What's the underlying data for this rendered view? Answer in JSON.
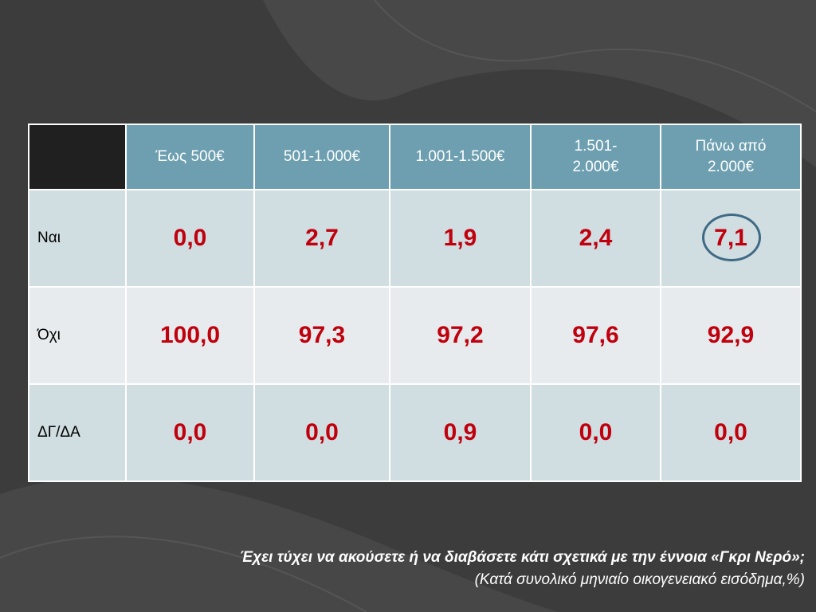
{
  "table": {
    "columns": [
      "Έως 500€",
      "501-1.000€",
      "1.001-1.500€",
      "1.501-\n2.000€",
      "Πάνω από\n2.000€"
    ],
    "rows": [
      {
        "label": "Ναι",
        "values": [
          "0,0",
          "2,7",
          "1,9",
          "2,4",
          "7,1"
        ]
      },
      {
        "label": "Όχι",
        "values": [
          "100,0",
          "97,3",
          "97,2",
          "97,6",
          "92,9"
        ]
      },
      {
        "label": "ΔΓ/ΔΑ",
        "values": [
          "0,0",
          "0,0",
          "0,9",
          "0,0",
          "0,0"
        ]
      }
    ]
  },
  "caption": {
    "question": "Έχει τύχει να ακούσετε ή να διαβάσετε κάτι σχετικά με την έννοια «Γκρι Νερό»;",
    "subtitle": "(Κατά συνολικό μηνιαίο οικογενειακό εισόδημα,%)"
  },
  "colors": {
    "header_bg": "#6d9fb0",
    "corner_bg": "#202020",
    "value_text": "#c0000d",
    "row_bg_a": "#d0dde1",
    "row_bg_b": "#e7ebed",
    "highlight_circle": "#3f6a85",
    "background": "#404040"
  }
}
